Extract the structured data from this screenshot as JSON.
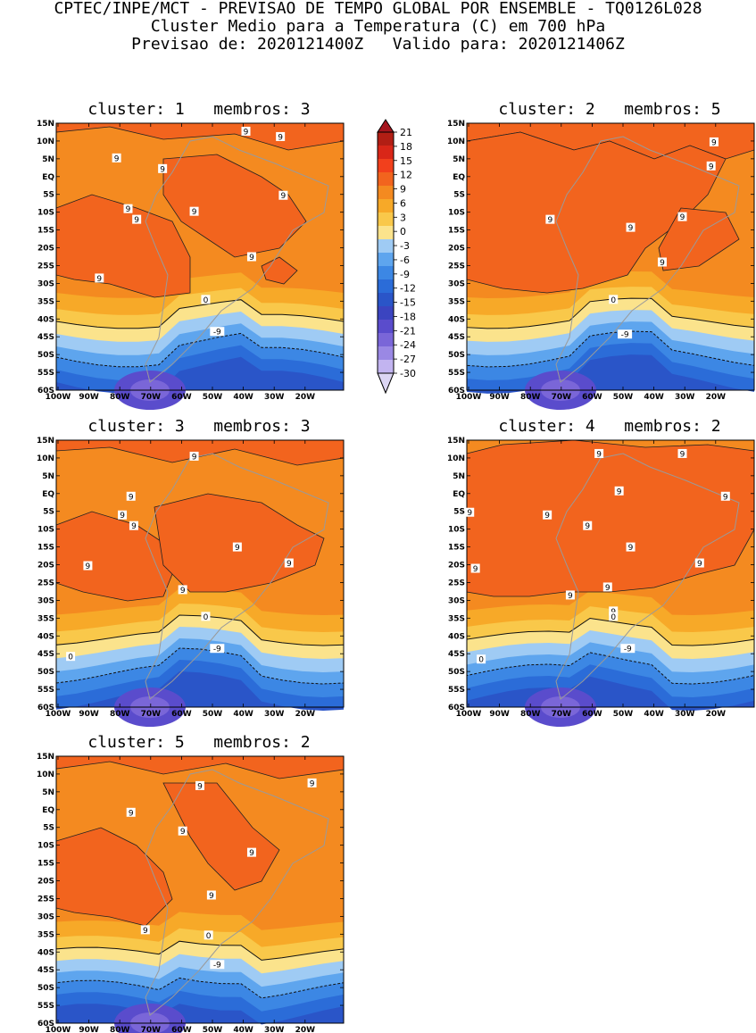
{
  "header": {
    "line1": "CPTEC/INPE/MCT - PREVISAO DE TEMPO GLOBAL POR ENSEMBLE - TQ0126L028",
    "line2": "Cluster Medio para a Temperatura (C) em 700 hPa",
    "line3": "Previsao de: 2020121400Z   Valido para: 2020121406Z"
  },
  "axes": {
    "lat_labels": [
      "15N",
      "10N",
      "5N",
      "EQ",
      "5S",
      "10S",
      "15S",
      "20S",
      "25S",
      "30S",
      "35S",
      "40S",
      "45S",
      "50S",
      "55S",
      "60S"
    ],
    "lon_labels": [
      "100W",
      "90W",
      "80W",
      "70W",
      "60W",
      "50W",
      "40W",
      "30W",
      "20W"
    ]
  },
  "colorbar": {
    "labels": [
      "21",
      "18",
      "15",
      "12",
      "9",
      "6",
      "3",
      "0",
      "-3",
      "-6",
      "-9",
      "-12",
      "-15",
      "-18",
      "-21",
      "-24",
      "-27",
      "-30"
    ],
    "colors": [
      "#b21e14",
      "#d92618",
      "#f2401c",
      "#f2641e",
      "#f48a20",
      "#f7a928",
      "#f9c84a",
      "#fbe38c",
      "#9fcbf4",
      "#5ea5ee",
      "#3c87e4",
      "#2b6cd8",
      "#2a55c8",
      "#3b44c0",
      "#5a4ccc",
      "#7a66d8",
      "#9a88e4",
      "#c2b4f0"
    ],
    "arrow_top_color": "#a5151d",
    "arrow_bottom_color": "#dcd6f4"
  },
  "panels": [
    {
      "title": "cluster: 1   membros: 3",
      "contour_labels": [
        "9",
        "9",
        "9",
        "9",
        "9",
        "9",
        "9",
        "9",
        "9",
        "9",
        "0",
        "-9"
      ]
    },
    {
      "title": "cluster: 2   membros: 5",
      "contour_labels": [
        "9",
        "9",
        "9",
        "9",
        "9",
        "9",
        "0",
        "-9"
      ]
    },
    {
      "title": "cluster: 3   membros: 3",
      "contour_labels": [
        "9",
        "9",
        "9",
        "9",
        "9",
        "9",
        "9",
        "9",
        "0",
        "0",
        "-9"
      ]
    },
    {
      "title": "cluster: 4   membros: 2",
      "contour_labels": [
        "9",
        "9",
        "9",
        "9",
        "9",
        "9",
        "9",
        "9",
        "9",
        "9",
        "9",
        "9",
        "9",
        "0",
        "0",
        "-9"
      ]
    },
    {
      "title": "cluster: 5   membros: 2",
      "contour_labels": [
        "9",
        "9",
        "9",
        "9",
        "9",
        "9",
        "9",
        "0",
        "-9"
      ]
    }
  ]
}
